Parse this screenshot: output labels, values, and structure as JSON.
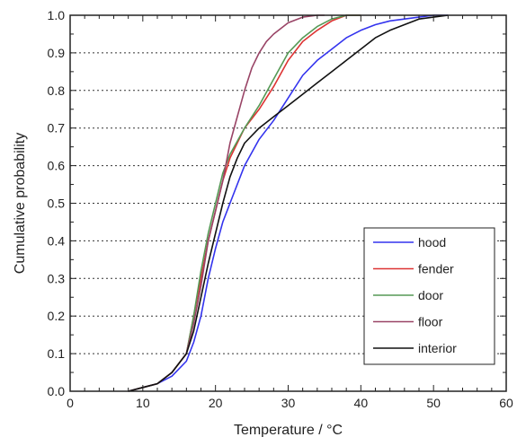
{
  "chart_data": {
    "type": "line",
    "xlabel": "Temperature / °C",
    "ylabel": "Cumulative probability",
    "xlim": [
      0,
      60
    ],
    "ylim": [
      0,
      1
    ],
    "x_ticks": [
      "0",
      "10",
      "20",
      "30",
      "40",
      "50",
      "60"
    ],
    "y_ticks": [
      "0.0",
      "0.1",
      "0.2",
      "0.3",
      "0.4",
      "0.5",
      "0.6",
      "0.7",
      "0.8",
      "0.9",
      "1.0"
    ],
    "grid": "horizontal dotted",
    "legend_position": "lower-right",
    "series": [
      {
        "name": "hood",
        "color": "#3333ee",
        "x": [
          8,
          10,
          12,
          14,
          16,
          17,
          18,
          19,
          20,
          21,
          22,
          23,
          24,
          26,
          28,
          30,
          32,
          34,
          36,
          38,
          40,
          42,
          44,
          46,
          48,
          50,
          52
        ],
        "y": [
          0.0,
          0.01,
          0.02,
          0.04,
          0.08,
          0.13,
          0.2,
          0.3,
          0.38,
          0.45,
          0.5,
          0.55,
          0.6,
          0.67,
          0.72,
          0.78,
          0.84,
          0.88,
          0.91,
          0.94,
          0.96,
          0.975,
          0.985,
          0.99,
          0.995,
          1.0,
          1.0
        ]
      },
      {
        "name": "fender",
        "color": "#dd3333",
        "x": [
          8,
          10,
          12,
          14,
          16,
          17,
          18,
          19,
          20,
          21,
          22,
          24,
          26,
          28,
          30,
          32,
          34,
          36,
          38,
          40
        ],
        "y": [
          0.0,
          0.01,
          0.02,
          0.05,
          0.1,
          0.2,
          0.3,
          0.4,
          0.48,
          0.56,
          0.62,
          0.7,
          0.75,
          0.81,
          0.88,
          0.93,
          0.96,
          0.985,
          1.0,
          1.0
        ]
      },
      {
        "name": "door",
        "color": "#559955",
        "x": [
          8,
          10,
          12,
          14,
          16,
          17,
          18,
          19,
          20,
          21,
          22,
          24,
          26,
          28,
          30,
          32,
          34,
          36,
          38,
          40
        ],
        "y": [
          0.0,
          0.01,
          0.02,
          0.05,
          0.1,
          0.2,
          0.32,
          0.42,
          0.5,
          0.58,
          0.63,
          0.7,
          0.76,
          0.83,
          0.9,
          0.94,
          0.97,
          0.99,
          1.0,
          1.0
        ]
      },
      {
        "name": "floor",
        "color": "#994466",
        "x": [
          8,
          10,
          12,
          14,
          16,
          17,
          18,
          19,
          20,
          21,
          22,
          23,
          24,
          25,
          26,
          27,
          28,
          30,
          32,
          34,
          35
        ],
        "y": [
          0.0,
          0.01,
          0.02,
          0.05,
          0.1,
          0.18,
          0.28,
          0.4,
          0.48,
          0.56,
          0.66,
          0.73,
          0.8,
          0.86,
          0.9,
          0.93,
          0.95,
          0.98,
          0.995,
          1.0,
          1.0
        ]
      },
      {
        "name": "interior",
        "color": "#111111",
        "x": [
          8,
          10,
          12,
          14,
          16,
          17,
          18,
          19,
          20,
          21,
          22,
          23,
          24,
          26,
          28,
          30,
          32,
          34,
          36,
          38,
          40,
          42,
          44,
          46,
          48,
          50,
          52
        ],
        "y": [
          0.0,
          0.01,
          0.02,
          0.05,
          0.1,
          0.16,
          0.25,
          0.34,
          0.42,
          0.5,
          0.57,
          0.62,
          0.66,
          0.7,
          0.73,
          0.76,
          0.79,
          0.82,
          0.85,
          0.88,
          0.91,
          0.94,
          0.96,
          0.975,
          0.99,
          0.995,
          1.0
        ]
      }
    ]
  }
}
